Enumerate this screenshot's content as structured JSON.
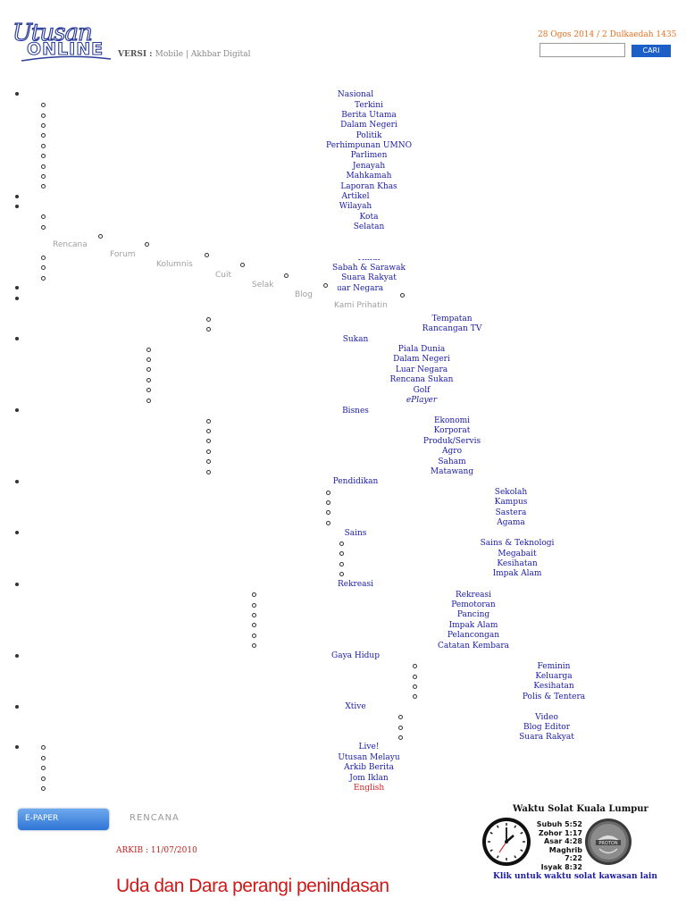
{
  "header": {
    "logo_text_1": "Utusan",
    "logo_text_2": "ONLINE",
    "versi_label": "VERSI : ",
    "versi_links": "Mobile | Akhbar Digital",
    "date": "28 Ogos 2014 / 2 Dulkaedah 1435",
    "search_placeholder": "",
    "search_button": "CARI"
  },
  "menu": {
    "nasional": "Nasional",
    "terkini": "Terkini",
    "berita_utama": "Berita Utama",
    "dalam_negeri": "Dalam Negeri",
    "politik": "Politik",
    "perhimpunan": "Perhimpunan UMNO",
    "parlimen": "Parlimen",
    "jenayah": "Jenayah",
    "mahkamah": "Mahkamah",
    "laporan_khas": "Laporan Khas",
    "artikel": "Artikel",
    "wilayah": "Wilayah",
    "kota": "Kota",
    "selatan": "Selatan",
    "timur": "Timur",
    "sabah_sarawak": "Sabah & Sarawak",
    "suara_rakyat": "Suara Rakyat",
    "luar_negara": "Luar Negara",
    "tempatan": "Tempatan",
    "rancangan_tv": "Rancangan TV",
    "sukan": "Sukan",
    "piala_dunia": "Piala Dunia",
    "sukan_dalam_negeri": "Dalam Negeri",
    "sukan_luar_negara": "Luar Negara",
    "rencana_sukan": "Rencana Sukan",
    "golf": "Golf",
    "eplayer": "ePlayer",
    "bisnes": "Bisnes",
    "ekonomi": "Ekonomi",
    "korporat": "Korporat",
    "produk_servis": "Produk/Servis",
    "agro": "Agro",
    "saham": "Saham",
    "matawang": "Matawang",
    "pendidikan": "Pendidikan",
    "sekolah": "Sekolah",
    "kampus": "Kampus",
    "sastera": "Sastera",
    "agama": "Agama",
    "sains": "Sains",
    "sains_teknologi": "Sains & Teknologi",
    "megabait": "Megabait",
    "kesihatan": "Kesihatan",
    "impak_alam": "Impak Alam",
    "rekreasi": "Rekreasi",
    "rekreasi_sub": "Rekreasi",
    "pemotoran": "Pemotoran",
    "pancing": "Pancing",
    "impak_alam_2": "Impak Alam",
    "pelancongan": "Pelancongan",
    "catatan_kembara": "Catatan Kembara",
    "gaya_hidup": "Gaya Hidup",
    "feminin": "Feminin",
    "keluarga": "Keluarga",
    "kesihatan_2": "Kesihatan",
    "polis_tentera": "Polis & Tentera",
    "xtive": "Xtive",
    "video": "Video",
    "blog_editor": "Blog Editor",
    "suara_rakyat_2": "Suara Rakyat",
    "live": "Live!",
    "utusan_melayu": "Utusan Melayu",
    "arkib_berita": "Arkib Berita",
    "jom_iklan": "Jom Iklan",
    "english": "English"
  },
  "overlay_menu": {
    "rencana": "Rencana",
    "forum": "Forum",
    "kolumnis": "Kolumnis",
    "cuit": "Cuit",
    "selak": "Selak",
    "blog": "Blog",
    "kami_prihatin": "Kami Prihatin"
  },
  "content": {
    "epaper": "E-PAPER",
    "section": "RENCANA",
    "arkib": "ARKIB : 11/07/2010",
    "headline": "Uda dan Dara perangi penindasan"
  },
  "solat": {
    "title": "Waktu Solat Kuala Lumpur",
    "subuh": "Subuh 5:52",
    "zohor": "Zohor 1:17",
    "asar": "Asar 4:28",
    "maghrib": "Maghrib 7:22",
    "isyak": "Isyak 8:32",
    "link": "Klik untuk waktu solat kawasan lain",
    "sponsor_icon": "proton-logo-icon"
  }
}
